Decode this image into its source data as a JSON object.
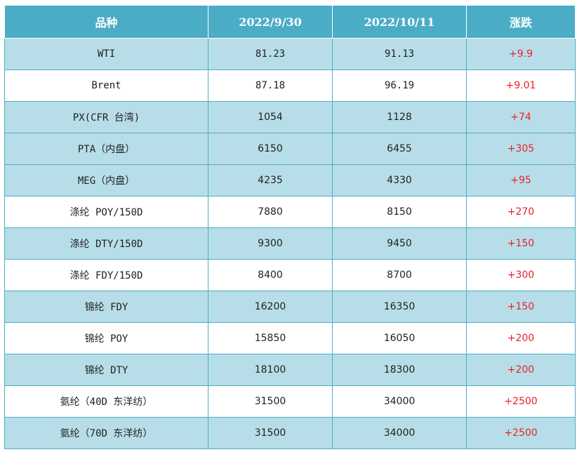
{
  "table": {
    "headers": [
      "品种",
      "2022/9/30",
      "2022/10/11",
      "涨跌"
    ],
    "rows": [
      {
        "name": "WTI",
        "v1": "81.23",
        "v2": "91.13",
        "change": "+9.9"
      },
      {
        "name": "Brent",
        "v1": "87.18",
        "v2": "96.19",
        "change": "+9.01"
      },
      {
        "name": "PX(CFR 台湾)",
        "v1": "1054",
        "v2": "1128",
        "change": "+74"
      },
      {
        "name": "PTA（内盘）",
        "v1": "6150",
        "v2": "6455",
        "change": "+305"
      },
      {
        "name": "MEG（内盘）",
        "v1": "4235",
        "v2": "4330",
        "change": "+95"
      },
      {
        "name": "涤纶 POY/150D",
        "v1": "7880",
        "v2": "8150",
        "change": "+270"
      },
      {
        "name": "涤纶 DTY/150D",
        "v1": "9300",
        "v2": "9450",
        "change": "+150"
      },
      {
        "name": "涤纶 FDY/150D",
        "v1": "8400",
        "v2": "8700",
        "change": "+300"
      },
      {
        "name": "锦纶 FDY",
        "v1": "16200",
        "v2": "16350",
        "change": "+150"
      },
      {
        "name": "锦纶 POY",
        "v1": "15850",
        "v2": "16050",
        "change": "+200"
      },
      {
        "name": "锦纶 DTY",
        "v1": "18100",
        "v2": "18300",
        "change": "+200"
      },
      {
        "name": "氨纶（40D 东洋纺）",
        "v1": "31500",
        "v2": "34000",
        "change": "+2500"
      },
      {
        "name": "氨纶（70D 东洋纺）",
        "v1": "31500",
        "v2": "34000",
        "change": "+2500"
      }
    ]
  },
  "colors": {
    "header_bg": "#4bacc6",
    "band_bg": "#b7dee8",
    "change_text": "#e8202a"
  }
}
